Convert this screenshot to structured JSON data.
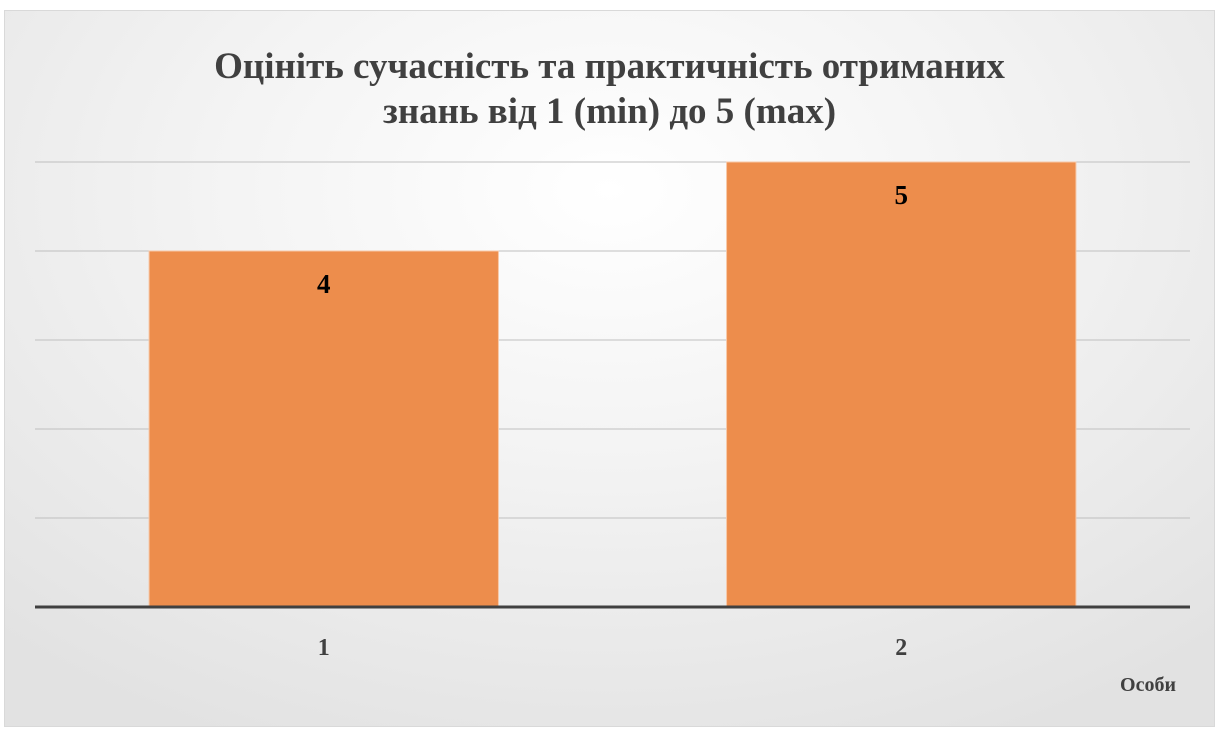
{
  "chart_data": {
    "type": "bar",
    "title_lines": [
      "Оцініть сучасність та практичність отриманих",
      "знань від 1 (min) до 5 (max)"
    ],
    "categories": [
      "1",
      "2"
    ],
    "values": [
      4,
      5
    ],
    "data_labels": [
      "4",
      "5"
    ],
    "xlabel": "Особи",
    "ylabel": "",
    "ylim": [
      0,
      5
    ],
    "grid": true,
    "legend": "none",
    "bar_color": "#ED8D4C",
    "axis_color": "#404040",
    "grid_color": "#bfbfbf",
    "text_color": "#404040",
    "label_color": "#000000"
  }
}
